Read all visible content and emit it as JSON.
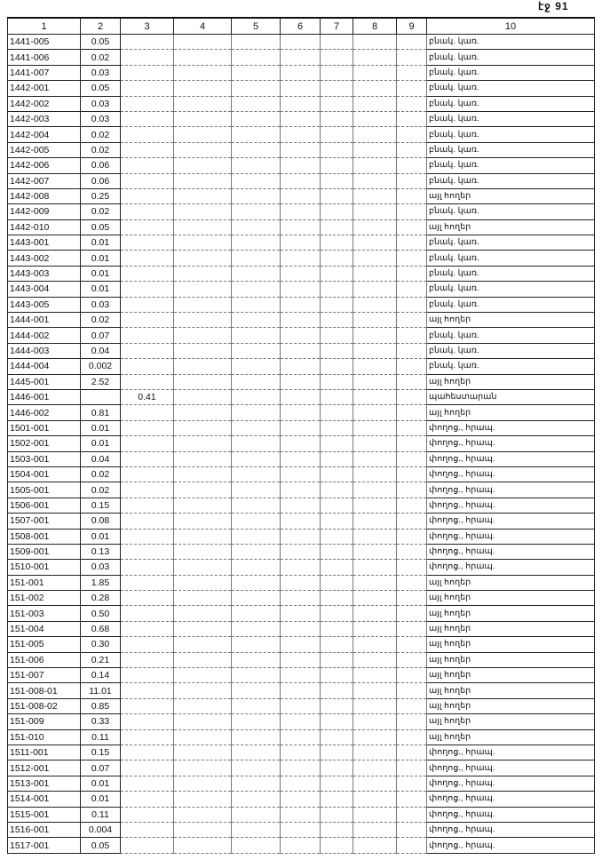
{
  "page_label": "էջ 91",
  "table": {
    "headers": [
      "1",
      "2",
      "3",
      "4",
      "5",
      "6",
      "7",
      "8",
      "9",
      "10"
    ],
    "rows": [
      [
        "1441-005",
        "0.05",
        "",
        "",
        "",
        "",
        "",
        "",
        "",
        "բնակ. կառ."
      ],
      [
        "1441-006",
        "0.02",
        "",
        "",
        "",
        "",
        "",
        "",
        "",
        "բնակ. կառ."
      ],
      [
        "1441-007",
        "0.03",
        "",
        "",
        "",
        "",
        "",
        "",
        "",
        "բնակ. կառ."
      ],
      [
        "1442-001",
        "0.05",
        "",
        "",
        "",
        "",
        "",
        "",
        "",
        "բնակ. կառ."
      ],
      [
        "1442-002",
        "0.03",
        "",
        "",
        "",
        "",
        "",
        "",
        "",
        "բնակ. կառ."
      ],
      [
        "1442-003",
        "0.03",
        "",
        "",
        "",
        "",
        "",
        "",
        "",
        "բնակ. կառ."
      ],
      [
        "1442-004",
        "0.02",
        "",
        "",
        "",
        "",
        "",
        "",
        "",
        "բնակ. կառ."
      ],
      [
        "1442-005",
        "0.02",
        "",
        "",
        "",
        "",
        "",
        "",
        "",
        "բնակ. կառ."
      ],
      [
        "1442-006",
        "0.06",
        "",
        "",
        "",
        "",
        "",
        "",
        "",
        "բնակ. կառ."
      ],
      [
        "1442-007",
        "0.06",
        "",
        "",
        "",
        "",
        "",
        "",
        "",
        "բնակ. կառ."
      ],
      [
        "1442-008",
        "0.25",
        "",
        "",
        "",
        "",
        "",
        "",
        "",
        "այլ հողեր"
      ],
      [
        "1442-009",
        "0.02",
        "",
        "",
        "",
        "",
        "",
        "",
        "",
        "բնակ. կառ."
      ],
      [
        "1442-010",
        "0.05",
        "",
        "",
        "",
        "",
        "",
        "",
        "",
        "այլ հողեր"
      ],
      [
        "1443-001",
        "0.01",
        "",
        "",
        "",
        "",
        "",
        "",
        "",
        "բնակ. կառ."
      ],
      [
        "1443-002",
        "0.01",
        "",
        "",
        "",
        "",
        "",
        "",
        "",
        "բնակ. կառ."
      ],
      [
        "1443-003",
        "0.01",
        "",
        "",
        "",
        "",
        "",
        "",
        "",
        "բնակ. կառ."
      ],
      [
        "1443-004",
        "0.01",
        "",
        "",
        "",
        "",
        "",
        "",
        "",
        "բնակ. կառ."
      ],
      [
        "1443-005",
        "0.03",
        "",
        "",
        "",
        "",
        "",
        "",
        "",
        "բնակ. կառ."
      ],
      [
        "1444-001",
        "0.02",
        "",
        "",
        "",
        "",
        "",
        "",
        "",
        "այլ հողեր"
      ],
      [
        "1444-002",
        "0.07",
        "",
        "",
        "",
        "",
        "",
        "",
        "",
        "բնակ. կառ."
      ],
      [
        "1444-003",
        "0.04",
        "",
        "",
        "",
        "",
        "",
        "",
        "",
        "բնակ. կառ."
      ],
      [
        "1444-004",
        "0.002",
        "",
        "",
        "",
        "",
        "",
        "",
        "",
        "բնակ. կառ."
      ],
      [
        "1445-001",
        "2.52",
        "",
        "",
        "",
        "",
        "",
        "",
        "",
        "այլ հողեր"
      ],
      [
        "1446-001",
        "",
        "0.41",
        "",
        "",
        "",
        "",
        "",
        "",
        "պահեստարան"
      ],
      [
        "1446-002",
        "0.81",
        "",
        "",
        "",
        "",
        "",
        "",
        "",
        "այլ հողեր"
      ],
      [
        "1501-001",
        "0.01",
        "",
        "",
        "",
        "",
        "",
        "",
        "",
        "փողոց., հրապ."
      ],
      [
        "1502-001",
        "0.01",
        "",
        "",
        "",
        "",
        "",
        "",
        "",
        "փողոց., հրապ."
      ],
      [
        "1503-001",
        "0.04",
        "",
        "",
        "",
        "",
        "",
        "",
        "",
        "փողոց., հրապ."
      ],
      [
        "1504-001",
        "0.02",
        "",
        "",
        "",
        "",
        "",
        "",
        "",
        "փողոց., հրապ."
      ],
      [
        "1505-001",
        "0.02",
        "",
        "",
        "",
        "",
        "",
        "",
        "",
        "փողոց., հրապ."
      ],
      [
        "1506-001",
        "0.15",
        "",
        "",
        "",
        "",
        "",
        "",
        "",
        "փողոց., հրապ."
      ],
      [
        "1507-001",
        "0.08",
        "",
        "",
        "",
        "",
        "",
        "",
        "",
        "փողոց., հրապ."
      ],
      [
        "1508-001",
        "0.01",
        "",
        "",
        "",
        "",
        "",
        "",
        "",
        "փողոց., հրապ."
      ],
      [
        "1509-001",
        "0.13",
        "",
        "",
        "",
        "",
        "",
        "",
        "",
        "փողոց., հրապ."
      ],
      [
        "1510-001",
        "0.03",
        "",
        "",
        "",
        "",
        "",
        "",
        "",
        "փողոց., հրապ."
      ],
      [
        "151-001",
        "1.85",
        "",
        "",
        "",
        "",
        "",
        "",
        "",
        "այլ հողեր"
      ],
      [
        "151-002",
        "0.28",
        "",
        "",
        "",
        "",
        "",
        "",
        "",
        "այլ հողեր"
      ],
      [
        "151-003",
        "0.50",
        "",
        "",
        "",
        "",
        "",
        "",
        "",
        "այլ հողեր"
      ],
      [
        "151-004",
        "0.68",
        "",
        "",
        "",
        "",
        "",
        "",
        "",
        "այլ հողեր"
      ],
      [
        "151-005",
        "0.30",
        "",
        "",
        "",
        "",
        "",
        "",
        "",
        "այլ հողեր"
      ],
      [
        "151-006",
        "0.21",
        "",
        "",
        "",
        "",
        "",
        "",
        "",
        "այլ հողեր"
      ],
      [
        "151-007",
        "0.14",
        "",
        "",
        "",
        "",
        "",
        "",
        "",
        "այլ հողեր"
      ],
      [
        "151-008-01",
        "11.01",
        "",
        "",
        "",
        "",
        "",
        "",
        "",
        "այլ հողեր"
      ],
      [
        "151-008-02",
        "0.85",
        "",
        "",
        "",
        "",
        "",
        "",
        "",
        "այլ հողեր"
      ],
      [
        "151-009",
        "0.33",
        "",
        "",
        "",
        "",
        "",
        "",
        "",
        "այլ հողեր"
      ],
      [
        "151-010",
        "0.11",
        "",
        "",
        "",
        "",
        "",
        "",
        "",
        "այլ հողեր"
      ],
      [
        "1511-001",
        "0.15",
        "",
        "",
        "",
        "",
        "",
        "",
        "",
        "փողոց., հրապ."
      ],
      [
        "1512-001",
        "0.07",
        "",
        "",
        "",
        "",
        "",
        "",
        "",
        "փողոց., հրապ."
      ],
      [
        "1513-001",
        "0.01",
        "",
        "",
        "",
        "",
        "",
        "",
        "",
        "փողոց., հրապ."
      ],
      [
        "1514-001",
        "0.01",
        "",
        "",
        "",
        "",
        "",
        "",
        "",
        "փողոց., հրապ."
      ],
      [
        "1515-001",
        "0.11",
        "",
        "",
        "",
        "",
        "",
        "",
        "",
        "փողոց., հրապ."
      ],
      [
        "1516-001",
        "0.004",
        "",
        "",
        "",
        "",
        "",
        "",
        "",
        "փողոց., հրապ."
      ],
      [
        "1517-001",
        "0.05",
        "",
        "",
        "",
        "",
        "",
        "",
        "",
        "փողոց., հրապ."
      ]
    ]
  }
}
